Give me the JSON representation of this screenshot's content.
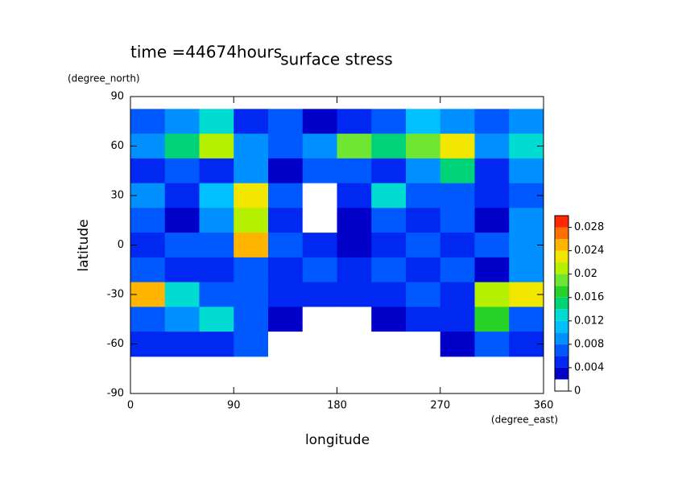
{
  "chart_data": {
    "type": "contour",
    "title": "surface stress",
    "subtitle": "time =44674hours",
    "xlabel": "longitude",
    "xlabel_unit": "(degree_east)",
    "ylabel": "latitude",
    "ylabel_unit": "(degree_north)",
    "x": [
      15,
      45,
      75,
      105,
      135,
      165,
      195,
      225,
      255,
      285,
      315,
      345
    ],
    "y": [
      75,
      60,
      45,
      30,
      15,
      0,
      -15,
      -30,
      -45,
      -60
    ],
    "values": [
      [
        0.006,
        0.008,
        0.012,
        0.004,
        0.006,
        0.002,
        0.004,
        0.006,
        0.01,
        0.008,
        0.006,
        0.008
      ],
      [
        0.008,
        0.014,
        0.02,
        0.008,
        0.006,
        0.008,
        0.018,
        0.014,
        0.018,
        0.022,
        0.008,
        0.012
      ],
      [
        0.004,
        0.006,
        0.004,
        0.008,
        0.002,
        0.006,
        0.006,
        0.004,
        0.008,
        0.014,
        0.004,
        0.008
      ],
      [
        0.008,
        0.004,
        0.01,
        0.022,
        0.006,
        0,
        0.004,
        0.012,
        0.006,
        0.006,
        0.004,
        0.006
      ],
      [
        0.006,
        0.002,
        0.008,
        0.02,
        0.004,
        0,
        0.002,
        0.006,
        0.004,
        0.006,
        0.002,
        0.008
      ],
      [
        0.004,
        0.006,
        0.006,
        0.024,
        0.006,
        0.004,
        0.002,
        0.004,
        0.006,
        0.004,
        0.006,
        0.008
      ],
      [
        0.006,
        0.004,
        0.004,
        0.006,
        0.004,
        0.006,
        0.004,
        0.006,
        0.004,
        0.006,
        0.002,
        0.008
      ],
      [
        0.024,
        0.012,
        0.006,
        0.006,
        0.004,
        0.004,
        0.004,
        0.004,
        0.006,
        0.004,
        0.02,
        0.022
      ],
      [
        0.006,
        0.008,
        0.012,
        0.006,
        0.002,
        0,
        0,
        0.002,
        0.004,
        0.004,
        0.016,
        0.006
      ],
      [
        0.004,
        0.004,
        0.004,
        0.006,
        0,
        0,
        0,
        0,
        0,
        0.002,
        0.006,
        0.004
      ]
    ],
    "xlim": [
      0,
      360
    ],
    "xticks": [
      0,
      90,
      180,
      270,
      360
    ],
    "ylim": [
      -90,
      90
    ],
    "yticks": [
      -90,
      -60,
      -30,
      0,
      30,
      60,
      90
    ],
    "colorbar": {
      "levels": [
        0,
        0.002,
        0.004,
        0.006,
        0.008,
        0.01,
        0.012,
        0.014,
        0.016,
        0.018,
        0.02,
        0.022,
        0.024,
        0.026,
        0.028,
        0.03
      ],
      "colors": [
        "#ffffff",
        "#0000c8",
        "#0028f0",
        "#0058ff",
        "#0090ff",
        "#00c0ff",
        "#00dcd2",
        "#00d278",
        "#28d228",
        "#6ee632",
        "#b4f000",
        "#f0e600",
        "#ffb400",
        "#ff6e00",
        "#ff2800"
      ],
      "ticks": [
        0,
        0.004,
        0.008,
        0.012,
        0.016,
        0.02,
        0.024,
        0.028
      ]
    }
  }
}
